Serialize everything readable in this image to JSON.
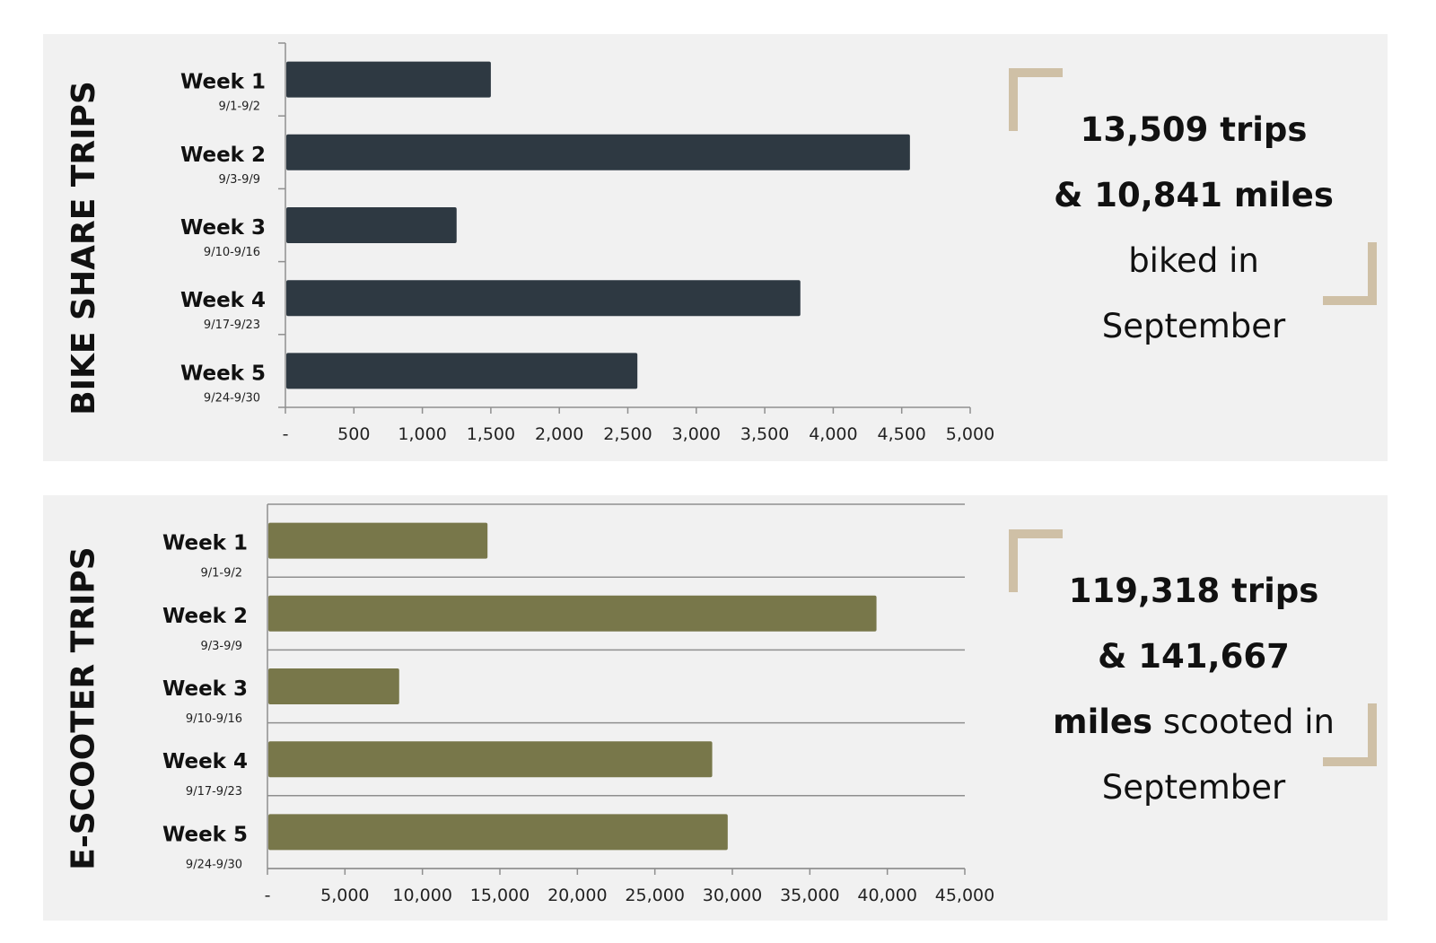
{
  "colors": {
    "panel_background": "#f1f1f1",
    "bike_bar": "#2e3942",
    "scooter_bar": "#78774a",
    "corner_accent": "#cfc0a6"
  },
  "bike_panel": {
    "side_title": "BIKE SHARE TRIPS",
    "stat_lines": [
      {
        "bold": "13,509 trips",
        "rest": ""
      },
      {
        "bold": "& 10,841 miles",
        "rest": ""
      },
      {
        "bold": "",
        "rest": "biked in"
      },
      {
        "bold": "",
        "rest": "September"
      }
    ]
  },
  "scooter_panel": {
    "side_title": "E-SCOOTER TRIPS",
    "stat_lines": [
      {
        "bold": "119,318 trips",
        "rest": ""
      },
      {
        "bold": "& 141,667",
        "rest": ""
      },
      {
        "bold": "miles",
        "rest": " scooted in"
      },
      {
        "bold": "",
        "rest": "September"
      }
    ]
  },
  "chart_data": [
    {
      "type": "bar",
      "orientation": "horizontal",
      "categories": [
        "Week 1",
        "Week 2",
        "Week 3",
        "Week 4",
        "Week 5"
      ],
      "category_sublabels": [
        "9/1-9/2",
        "9/3-9/9",
        "9/10-9/16",
        "9/17-9/23",
        "9/24-9/30"
      ],
      "values": [
        1500,
        4560,
        1250,
        3760,
        2570
      ],
      "xlim": [
        0,
        5000
      ],
      "xticks": [
        0,
        500,
        1000,
        1500,
        2000,
        2500,
        3000,
        3500,
        4000,
        4500,
        5000
      ],
      "xtick_labels": [
        "-",
        "500",
        "1,000",
        "1,500",
        "2,000",
        "2,500",
        "3,000",
        "3,500",
        "4,000",
        "4,500",
        "5,000"
      ],
      "grid": false,
      "legend": "none"
    },
    {
      "type": "bar",
      "orientation": "horizontal",
      "categories": [
        "Week 1",
        "Week 2",
        "Week 3",
        "Week 4",
        "Week 5"
      ],
      "category_sublabels": [
        "9/1-9/2",
        "9/3-9/9",
        "9/10-9/16",
        "9/17-9/23",
        "9/24-9/30"
      ],
      "values": [
        14200,
        39300,
        8500,
        28700,
        29700
      ],
      "xlim": [
        0,
        45000
      ],
      "xticks": [
        0,
        5000,
        10000,
        15000,
        20000,
        25000,
        30000,
        35000,
        40000,
        45000
      ],
      "xtick_labels": [
        "-",
        "5,000",
        "10,000",
        "15,000",
        "20,000",
        "25,000",
        "30,000",
        "35,000",
        "40,000",
        "45,000"
      ],
      "grid": true,
      "legend": "none"
    }
  ]
}
